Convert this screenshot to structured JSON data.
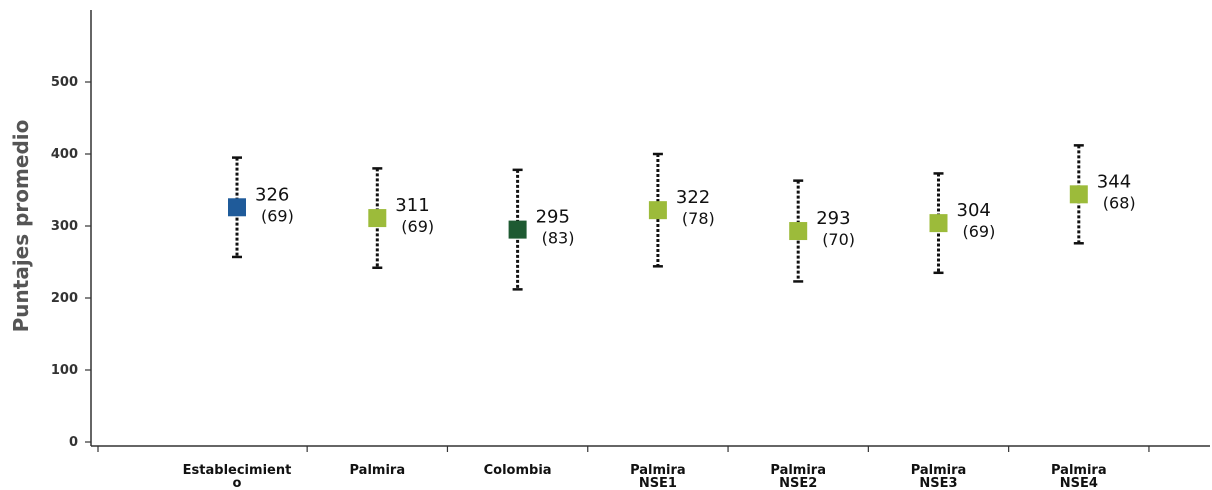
{
  "chart_data": {
    "type": "scatter",
    "ylabel": "Puntajes promedio",
    "ylim": [
      0,
      500
    ],
    "yticks": [
      0,
      100,
      200,
      300,
      400,
      500
    ],
    "grid": false,
    "legend": "none",
    "points": [
      {
        "category": [
          "Establecimient",
          "o"
        ],
        "mean": 326,
        "mean_label": "326",
        "sd_label": "(69)",
        "low": 257,
        "high": 395,
        "color": "#1f5b9a"
      },
      {
        "category": [
          "Palmira"
        ],
        "mean": 311,
        "mean_label": "311",
        "sd_label": "(69)",
        "low": 242,
        "high": 380,
        "color": "#9cbb3a"
      },
      {
        "category": [
          "Colombia"
        ],
        "mean": 295,
        "mean_label": "295",
        "sd_label": "(83)",
        "low": 212,
        "high": 378,
        "color": "#1e5a32"
      },
      {
        "category": [
          "Palmira",
          "NSE1"
        ],
        "mean": 322,
        "mean_label": "322",
        "sd_label": "(78)",
        "low": 244,
        "high": 400,
        "color": "#9cbb3a"
      },
      {
        "category": [
          "Palmira",
          "NSE2"
        ],
        "mean": 293,
        "mean_label": "293",
        "sd_label": "(70)",
        "low": 223,
        "high": 363,
        "color": "#9cbb3a"
      },
      {
        "category": [
          "Palmira",
          "NSE3"
        ],
        "mean": 304,
        "mean_label": "304",
        "sd_label": "(69)",
        "low": 235,
        "high": 373,
        "color": "#9cbb3a"
      },
      {
        "category": [
          "Palmira",
          "NSE4"
        ],
        "mean": 344,
        "mean_label": "344",
        "sd_label": "(68)",
        "low": 276,
        "high": 412,
        "color": "#9cbb3a"
      }
    ]
  }
}
